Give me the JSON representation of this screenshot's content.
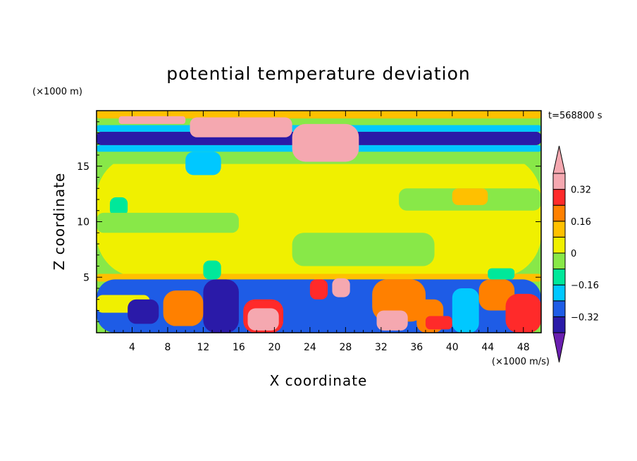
{
  "chart_data": {
    "type": "heatmap",
    "title": "potential temperature deviation",
    "time_label": "t=568800 s",
    "xlabel": "X coordinate",
    "ylabel": "Z coordinate",
    "x_unit": "(×1000 m/s)",
    "y_unit": "(×1000 m)",
    "xlim": [
      0,
      50
    ],
    "ylim": [
      0,
      20
    ],
    "x_ticks": [
      4,
      8,
      12,
      16,
      20,
      24,
      28,
      32,
      36,
      40,
      44,
      48
    ],
    "y_ticks": [
      5,
      10,
      15
    ],
    "colorbar": {
      "levels": [
        -0.4,
        -0.32,
        -0.24,
        -0.16,
        -0.08,
        0,
        0.08,
        0.16,
        0.24,
        0.32,
        0.4
      ],
      "labels": [
        "0.32",
        "0.16",
        "0",
        "−0.16",
        "−0.32"
      ],
      "label_values": [
        0.32,
        0.16,
        0,
        -0.16,
        -0.32
      ],
      "colors": [
        "#6a1fb0",
        "#2a1aa8",
        "#1e5ce6",
        "#00c8ff",
        "#00e89a",
        "#88e848",
        "#f0f000",
        "#ffc000",
        "#ff8000",
        "#ff2a2a",
        "#f5a8b0"
      ]
    },
    "regions": [
      {
        "x0": 0,
        "x1": 50,
        "y0": 5,
        "y1": 16,
        "value": 0.04
      },
      {
        "x0": 1.5,
        "x1": 3.5,
        "y0": 10.5,
        "y1": 12.2,
        "value": -0.12
      },
      {
        "x0": 34,
        "x1": 50,
        "y0": 11,
        "y1": 13,
        "value": -0.04
      },
      {
        "x0": 0,
        "x1": 16,
        "y0": 9,
        "y1": 10.8,
        "value": -0.04
      },
      {
        "x0": 22,
        "x1": 38,
        "y0": 6,
        "y1": 9,
        "value": -0.04
      },
      {
        "x0": 40,
        "x1": 44,
        "y0": 11.5,
        "y1": 13,
        "value": 0.12
      },
      {
        "x0": 0,
        "x1": 50,
        "y0": 15.2,
        "y1": 16.3,
        "value": -0.04
      },
      {
        "x0": 0,
        "x1": 50,
        "y0": 16.3,
        "y1": 16.9,
        "value": -0.2
      },
      {
        "x0": 0,
        "x1": 50,
        "y0": 16.9,
        "y1": 18.1,
        "value": -0.36
      },
      {
        "x0": 0,
        "x1": 50,
        "y0": 18.1,
        "y1": 18.7,
        "value": -0.2
      },
      {
        "x0": 0,
        "x1": 50,
        "y0": 18.7,
        "y1": 19.3,
        "value": -0.04
      },
      {
        "x0": 0,
        "x1": 50,
        "y0": 19.3,
        "y1": 20,
        "value": 0.12
      },
      {
        "x0": 10,
        "x1": 14,
        "y0": 14.2,
        "y1": 16.3,
        "value": -0.2
      },
      {
        "x0": 2.5,
        "x1": 10,
        "y0": 18.8,
        "y1": 19.5,
        "value": 0.36
      },
      {
        "x0": 10.5,
        "x1": 22,
        "y0": 17.6,
        "y1": 19.4,
        "value": 0.36
      },
      {
        "x0": 22,
        "x1": 29.5,
        "y0": 15.4,
        "y1": 18.8,
        "value": 0.36
      },
      {
        "x0": 0,
        "x1": 50,
        "y0": 4.6,
        "y1": 5.3,
        "value": 0.12
      },
      {
        "x0": 0,
        "x1": 50,
        "y0": 0,
        "y1": 4.8,
        "value": -0.28
      },
      {
        "x0": 0,
        "x1": 6,
        "y0": 1.8,
        "y1": 3.4,
        "value": 0.04
      },
      {
        "x0": 3.5,
        "x1": 7,
        "y0": 0.8,
        "y1": 3,
        "value": -0.36
      },
      {
        "x0": 7.5,
        "x1": 12,
        "y0": 0.6,
        "y1": 3.8,
        "value": 0.2
      },
      {
        "x0": 12,
        "x1": 16,
        "y0": 0,
        "y1": 4.8,
        "value": -0.36
      },
      {
        "x0": 16.5,
        "x1": 21,
        "y0": 0,
        "y1": 3,
        "value": 0.28
      },
      {
        "x0": 17,
        "x1": 20.5,
        "y0": 0.2,
        "y1": 2.2,
        "value": 0.36
      },
      {
        "x0": 21,
        "x1": 24,
        "y0": 0,
        "y1": 2,
        "value": -0.28
      },
      {
        "x0": 24,
        "x1": 26,
        "y0": 3,
        "y1": 4.8,
        "value": 0.28
      },
      {
        "x0": 26.5,
        "x1": 28.5,
        "y0": 3.2,
        "y1": 4.9,
        "value": 0.36
      },
      {
        "x0": 31,
        "x1": 37,
        "y0": 1,
        "y1": 4.8,
        "value": 0.2
      },
      {
        "x0": 31.5,
        "x1": 35,
        "y0": 0.2,
        "y1": 2,
        "value": 0.36
      },
      {
        "x0": 36,
        "x1": 39,
        "y0": 0,
        "y1": 3,
        "value": 0.2
      },
      {
        "x0": 37,
        "x1": 40,
        "y0": 0.3,
        "y1": 1.5,
        "value": 0.28
      },
      {
        "x0": 40,
        "x1": 43,
        "y0": 0,
        "y1": 4,
        "value": -0.2
      },
      {
        "x0": 43,
        "x1": 47,
        "y0": 2,
        "y1": 4.8,
        "value": 0.2
      },
      {
        "x0": 46,
        "x1": 50,
        "y0": 0,
        "y1": 3.5,
        "value": 0.28
      },
      {
        "x0": 12,
        "x1": 14,
        "y0": 4.8,
        "y1": 6.5,
        "value": -0.12
      },
      {
        "x0": 44,
        "x1": 47,
        "y0": 4.8,
        "y1": 5.8,
        "value": -0.12
      }
    ]
  }
}
